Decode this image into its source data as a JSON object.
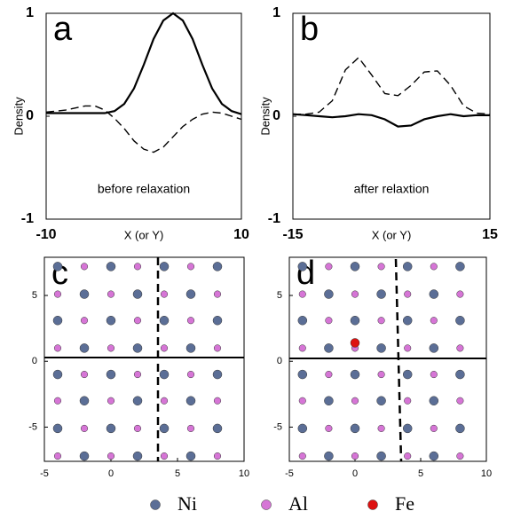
{
  "chart_data": [
    {
      "type": "line",
      "label": "a",
      "ylabel": "Density",
      "xlabel": "X (or Y)",
      "annotation": "before relaxation",
      "x": [
        -10,
        -9,
        -8,
        -7,
        -6,
        -5,
        -4,
        -3,
        -2,
        -1,
        0,
        1,
        2,
        3,
        4,
        5,
        6,
        7,
        8,
        9,
        10
      ],
      "series": [
        {
          "color": "#000000",
          "style": "solid",
          "values": [
            0.03,
            0.03,
            0.03,
            0.03,
            0.03,
            0.03,
            0.03,
            0.05,
            0.12,
            0.27,
            0.5,
            0.75,
            0.93,
            1.0,
            0.93,
            0.75,
            0.5,
            0.27,
            0.12,
            0.05,
            0.02
          ]
        },
        {
          "color": "#000000",
          "style": "dashed",
          "values": [
            0.04,
            0.05,
            0.06,
            0.08,
            0.1,
            0.1,
            0.06,
            -0.02,
            -0.12,
            -0.24,
            -0.32,
            -0.35,
            -0.3,
            -0.2,
            -0.1,
            -0.03,
            0.02,
            0.04,
            0.03,
            0.0,
            -0.03
          ]
        }
      ],
      "xlim": [
        -10,
        10
      ],
      "xticks": [
        -10,
        10
      ],
      "ylim": [
        -1,
        1
      ],
      "yticks": [
        -1,
        0,
        1
      ]
    },
    {
      "type": "line",
      "label": "b",
      "ylabel": "Density",
      "xlabel": "X (or Y)",
      "annotation": "after relaxtion",
      "x": [
        -15,
        -13,
        -11,
        -9,
        -7,
        -5,
        -3,
        -1,
        1,
        3,
        5,
        7,
        9,
        11,
        13,
        15
      ],
      "series": [
        {
          "color": "#000000",
          "style": "solid",
          "values": [
            0.02,
            0.01,
            0.0,
            -0.01,
            0.0,
            0.02,
            0.01,
            -0.03,
            -0.1,
            -0.09,
            -0.03,
            0.0,
            0.02,
            0.0,
            0.01,
            0.01
          ]
        },
        {
          "color": "#000000",
          "style": "dashed",
          "values": [
            0.02,
            0.02,
            0.04,
            0.15,
            0.45,
            0.57,
            0.4,
            0.22,
            0.2,
            0.3,
            0.43,
            0.44,
            0.3,
            0.1,
            0.03,
            0.02
          ]
        }
      ],
      "xlim": [
        -15,
        15
      ],
      "xticks": [
        -15,
        15
      ],
      "ylim": [
        -1,
        1
      ],
      "yticks": [
        -1,
        0,
        1
      ]
    },
    {
      "type": "scatter",
      "label": "c",
      "series": [
        {
          "name": "Ni",
          "color": "#5b6e96",
          "x": [
            -4,
            0,
            4,
            8,
            -2,
            2,
            6,
            -4,
            0,
            4,
            8,
            -2,
            2,
            6,
            -4,
            0,
            4,
            8,
            -2,
            2,
            6,
            -4,
            0,
            4,
            8,
            -2,
            2,
            6
          ],
          "values": [
            7.2,
            7.2,
            7.2,
            7.2,
            5.1,
            5.1,
            5.1,
            3.1,
            3.1,
            3.1,
            3.1,
            1.0,
            1.0,
            1.0,
            -1.0,
            -1.0,
            -1.0,
            -1.0,
            -3.0,
            -3.0,
            -3.0,
            -5.1,
            -5.1,
            -5.1,
            -5.1,
            -7.2,
            -7.2,
            -7.2
          ]
        },
        {
          "name": "Al",
          "color": "#d675d6",
          "x": [
            -2,
            2,
            6,
            -4,
            0,
            4,
            8,
            -2,
            2,
            6,
            -4,
            0,
            4,
            8,
            -2,
            2,
            6,
            -4,
            0,
            4,
            8,
            -2,
            2,
            6,
            -4,
            0,
            4,
            8
          ],
          "values": [
            7.2,
            7.2,
            7.2,
            5.1,
            5.1,
            5.1,
            5.1,
            3.1,
            3.1,
            3.1,
            1.0,
            1.0,
            1.0,
            1.0,
            -1.0,
            -1.0,
            -1.0,
            -3.0,
            -3.0,
            -3.0,
            -3.0,
            -5.1,
            -5.1,
            -5.1,
            -7.2,
            -7.2,
            -7.2,
            -7.2
          ]
        }
      ],
      "xlim": [
        -5,
        10
      ],
      "xticks": [
        -5,
        0,
        5,
        10
      ],
      "ylim": [
        -7.6,
        7.9
      ],
      "yticks": [
        -5,
        0,
        5
      ]
    },
    {
      "type": "scatter",
      "label": "d",
      "series": [
        {
          "name": "Ni",
          "color": "#5b6e96",
          "x": [
            -4,
            0,
            4,
            8,
            -2,
            2,
            6,
            -4,
            0,
            4,
            8,
            -2,
            2,
            6,
            -4,
            0,
            4,
            8,
            -2,
            2,
            6,
            -4,
            0,
            4,
            8,
            -2,
            2,
            6
          ],
          "values": [
            7.2,
            7.2,
            7.2,
            7.2,
            5.1,
            5.1,
            5.1,
            3.1,
            3.1,
            3.1,
            3.1,
            1.0,
            1.0,
            1.0,
            -1.0,
            -1.0,
            -1.0,
            -1.0,
            -3.0,
            -3.0,
            -3.0,
            -5.1,
            -5.1,
            -5.1,
            -5.1,
            -7.2,
            -7.2,
            -7.2
          ]
        },
        {
          "name": "Al",
          "color": "#d675d6",
          "x": [
            -2,
            2,
            6,
            -4,
            0,
            4,
            8,
            -2,
            2,
            6,
            -4,
            0,
            4,
            8,
            -2,
            2,
            6,
            -4,
            0,
            4,
            8,
            -2,
            2,
            6,
            -4,
            0,
            4,
            8
          ],
          "values": [
            7.2,
            7.2,
            7.2,
            5.1,
            5.1,
            5.1,
            5.1,
            3.1,
            3.1,
            3.1,
            1.0,
            1.0,
            1.0,
            1.0,
            -1.0,
            -1.0,
            -1.0,
            -3.0,
            -3.0,
            -3.0,
            -3.0,
            -5.1,
            -5.1,
            -5.1,
            -7.2,
            -7.2,
            -7.2,
            -7.2
          ]
        },
        {
          "name": "Fe",
          "color": "#dd1111",
          "x": [
            0
          ],
          "values": [
            1.4
          ]
        }
      ],
      "xlim": [
        -5,
        10
      ],
      "xticks": [
        -5,
        0,
        5,
        10
      ],
      "ylim": [
        -7.6,
        7.9
      ],
      "yticks": [
        -5,
        0,
        5
      ]
    }
  ],
  "legend": [
    {
      "name": "Ni",
      "color": "#5b6e96"
    },
    {
      "name": "Al",
      "color": "#d675d6"
    },
    {
      "name": "Fe",
      "color": "#dd1111"
    }
  ]
}
